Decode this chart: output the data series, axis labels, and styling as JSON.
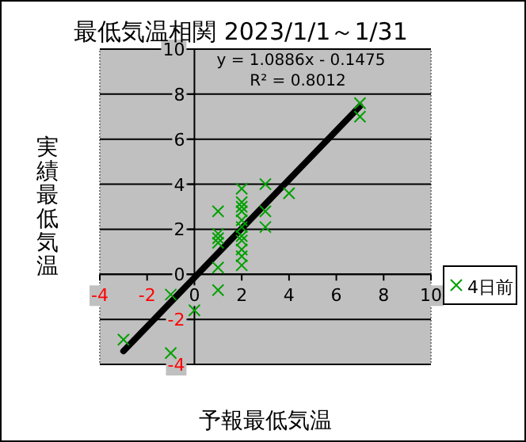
{
  "chart_data": {
    "type": "scatter",
    "title": "最低気温相関 2023/1/1～1/31",
    "xlabel": "予報最低気温",
    "ylabel": "実績最低気温",
    "annotations": [
      "y = 1.0886x - 0.1475",
      "R² = 0.8012"
    ],
    "xlim": [
      -4,
      10
    ],
    "ylim": [
      -4,
      10
    ],
    "xticks": [
      -4,
      -2,
      0,
      2,
      4,
      6,
      8,
      10
    ],
    "yticks": [
      -4,
      -2,
      0,
      2,
      4,
      6,
      8,
      10
    ],
    "grid": "y",
    "legend": "right",
    "marker": "cross",
    "series": [
      {
        "name": "4日前",
        "color": "#00a000",
        "x": [
          1,
          1,
          1,
          1,
          1,
          1,
          2,
          2,
          2,
          2,
          2,
          2,
          2,
          2,
          2,
          2,
          2,
          3,
          3,
          3,
          4,
          7,
          7,
          -1,
          -1,
          0,
          -3
        ],
        "values": [
          2.8,
          1.8,
          1.6,
          1.4,
          0.3,
          -0.7,
          3.8,
          3.2,
          3.0,
          2.8,
          2.4,
          2.1,
          1.7,
          1.5,
          1.1,
          0.8,
          0.4,
          4.0,
          2.8,
          2.1,
          3.6,
          7.6,
          7.0,
          -0.9,
          -3.5,
          -1.6,
          -2.9
        ]
      },
      {
        "type": "line",
        "color": "#000000",
        "marker": "none",
        "x": [
          -3,
          7
        ],
        "values": [
          -3.41,
          7.47
        ]
      }
    ]
  }
}
